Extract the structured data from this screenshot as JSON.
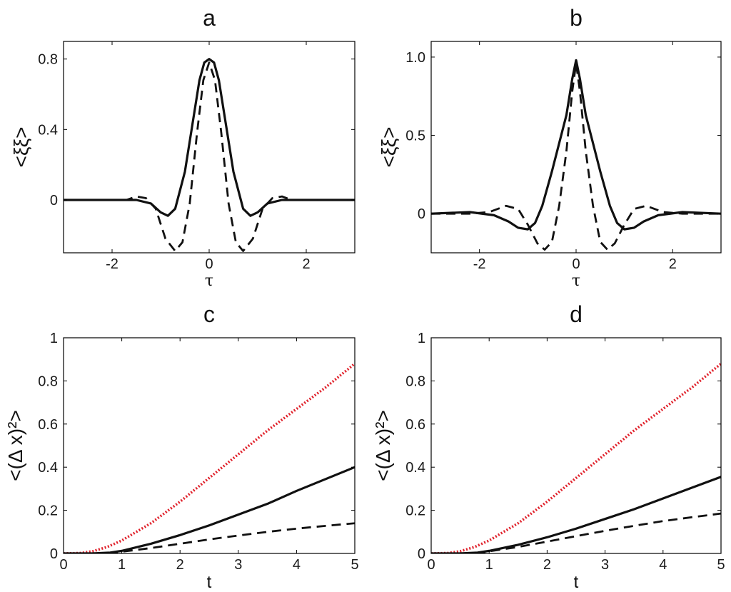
{
  "chart_data": [
    {
      "id": "a",
      "type": "line",
      "title": "a",
      "xlabel": "τ",
      "ylabel": "<ξξ>",
      "xlim": [
        -3,
        3
      ],
      "ylim": [
        -0.3,
        0.9
      ],
      "xticks": [
        -2,
        0,
        2
      ],
      "xtick_labels": [
        "-2",
        "0",
        "2"
      ],
      "yticks": [
        0,
        0.4,
        0.8
      ],
      "ytick_labels": [
        "0",
        "0.4",
        "0.8"
      ],
      "series": [
        {
          "name": "solid",
          "style": "solid",
          "color": "#111111",
          "x": [
            -3,
            -1.5,
            -1.2,
            -1.0,
            -0.85,
            -0.7,
            -0.5,
            -0.35,
            -0.2,
            -0.1,
            0,
            0.1,
            0.2,
            0.35,
            0.5,
            0.7,
            0.85,
            1.0,
            1.2,
            1.5,
            3
          ],
          "y": [
            0,
            0,
            -0.02,
            -0.07,
            -0.09,
            -0.05,
            0.16,
            0.42,
            0.68,
            0.78,
            0.8,
            0.78,
            0.68,
            0.42,
            0.16,
            -0.05,
            -0.09,
            -0.07,
            -0.02,
            0,
            0
          ]
        },
        {
          "name": "dashed",
          "style": "dashed",
          "color": "#111111",
          "x": [
            -3,
            -1.7,
            -1.5,
            -1.3,
            -1.1,
            -0.9,
            -0.7,
            -0.55,
            -0.4,
            -0.25,
            -0.12,
            0,
            0.12,
            0.25,
            0.4,
            0.55,
            0.7,
            0.9,
            1.1,
            1.3,
            1.5,
            1.7,
            3
          ],
          "y": [
            0,
            0,
            0.02,
            0.01,
            -0.05,
            -0.22,
            -0.29,
            -0.24,
            -0.02,
            0.38,
            0.68,
            0.78,
            0.68,
            0.38,
            -0.02,
            -0.24,
            -0.29,
            -0.22,
            -0.05,
            0.01,
            0.02,
            0,
            0
          ]
        }
      ]
    },
    {
      "id": "b",
      "type": "line",
      "title": "b",
      "xlabel": "τ",
      "ylabel": "<ξξ>",
      "xlim": [
        -3,
        3
      ],
      "ylim": [
        -0.25,
        1.1
      ],
      "xticks": [
        -2,
        0,
        2
      ],
      "xtick_labels": [
        "-2",
        "0",
        "2"
      ],
      "yticks": [
        0,
        0.5,
        1.0
      ],
      "ytick_labels": [
        "0",
        "0.5",
        "1.0"
      ],
      "series": [
        {
          "name": "solid",
          "style": "solid",
          "color": "#111111",
          "x": [
            -3,
            -2.2,
            -1.7,
            -1.4,
            -1.2,
            -1.0,
            -0.85,
            -0.7,
            -0.5,
            -0.35,
            -0.2,
            -0.08,
            0,
            0.08,
            0.2,
            0.35,
            0.5,
            0.7,
            0.85,
            1.0,
            1.2,
            1.4,
            1.7,
            2.2,
            3
          ],
          "y": [
            0,
            0.01,
            -0.01,
            -0.05,
            -0.09,
            -0.1,
            -0.06,
            0.05,
            0.27,
            0.45,
            0.63,
            0.86,
            0.98,
            0.86,
            0.63,
            0.45,
            0.27,
            0.05,
            -0.06,
            -0.1,
            -0.09,
            -0.05,
            -0.01,
            0.01,
            0
          ]
        },
        {
          "name": "dashed",
          "style": "dashed",
          "color": "#111111",
          "x": [
            -3,
            -2.2,
            -1.8,
            -1.45,
            -1.2,
            -1.0,
            -0.8,
            -0.65,
            -0.5,
            -0.35,
            -0.2,
            -0.08,
            0,
            0.08,
            0.2,
            0.35,
            0.5,
            0.65,
            0.8,
            1.0,
            1.2,
            1.45,
            1.8,
            2.2,
            3
          ],
          "y": [
            0,
            0,
            0.01,
            0.05,
            0.03,
            -0.07,
            -0.19,
            -0.23,
            -0.18,
            0.05,
            0.4,
            0.78,
            0.96,
            0.78,
            0.4,
            0.05,
            -0.18,
            -0.23,
            -0.19,
            -0.07,
            0.03,
            0.05,
            0.01,
            0,
            0
          ]
        }
      ]
    },
    {
      "id": "c",
      "type": "line",
      "title": "c",
      "xlabel": "t",
      "ylabel": "<(Δ x)²>",
      "xlim": [
        0,
        5
      ],
      "ylim": [
        0,
        1
      ],
      "xticks": [
        0,
        1,
        2,
        3,
        4,
        5
      ],
      "xtick_labels": [
        "0",
        "1",
        "2",
        "3",
        "4",
        "5"
      ],
      "yticks": [
        0,
        0.2,
        0.4,
        0.6,
        0.8,
        1
      ],
      "ytick_labels": [
        "0",
        "0.2",
        "0.4",
        "0.6",
        "0.8",
        "1"
      ],
      "series": [
        {
          "name": "red-dotted",
          "style": "dotted",
          "color": "#e0202a",
          "x": [
            0,
            0.3,
            0.5,
            0.75,
            1,
            1.5,
            2,
            2.5,
            3,
            3.5,
            4,
            4.5,
            5
          ],
          "y": [
            0,
            0.002,
            0.01,
            0.03,
            0.06,
            0.14,
            0.24,
            0.35,
            0.46,
            0.57,
            0.67,
            0.77,
            0.88
          ]
        },
        {
          "name": "solid",
          "style": "solid",
          "color": "#111111",
          "x": [
            0,
            0.5,
            0.8,
            1,
            1.5,
            2,
            2.5,
            3,
            3.5,
            4,
            4.5,
            5
          ],
          "y": [
            0,
            0,
            0.004,
            0.012,
            0.045,
            0.085,
            0.13,
            0.18,
            0.23,
            0.29,
            0.345,
            0.4
          ]
        },
        {
          "name": "dashed",
          "style": "dashed",
          "color": "#111111",
          "x": [
            0,
            0.6,
            0.9,
            1,
            1.5,
            2,
            2.5,
            3,
            3.5,
            4,
            4.5,
            5
          ],
          "y": [
            0,
            0,
            0.004,
            0.008,
            0.025,
            0.045,
            0.065,
            0.083,
            0.1,
            0.115,
            0.128,
            0.14
          ]
        }
      ]
    },
    {
      "id": "d",
      "type": "line",
      "title": "d",
      "xlabel": "t",
      "ylabel": "<(Δ x)²>",
      "xlim": [
        0,
        5
      ],
      "ylim": [
        0,
        1
      ],
      "xticks": [
        0,
        1,
        2,
        3,
        4,
        5
      ],
      "xtick_labels": [
        "0",
        "1",
        "2",
        "3",
        "4",
        "5"
      ],
      "yticks": [
        0,
        0.2,
        0.4,
        0.6,
        0.8,
        1
      ],
      "ytick_labels": [
        "0",
        "0.2",
        "0.4",
        "0.6",
        "0.8",
        "1"
      ],
      "series": [
        {
          "name": "red-dotted",
          "style": "dotted",
          "color": "#e0202a",
          "x": [
            0,
            0.3,
            0.5,
            0.75,
            1,
            1.5,
            2,
            2.5,
            3,
            3.5,
            4,
            4.5,
            5
          ],
          "y": [
            0,
            0.002,
            0.01,
            0.03,
            0.06,
            0.14,
            0.24,
            0.35,
            0.46,
            0.57,
            0.67,
            0.77,
            0.88
          ]
        },
        {
          "name": "solid",
          "style": "solid",
          "color": "#111111",
          "x": [
            0,
            0.5,
            0.8,
            1,
            1.5,
            2,
            2.5,
            3,
            3.5,
            4,
            4.5,
            5
          ],
          "y": [
            0,
            0,
            0.004,
            0.012,
            0.04,
            0.075,
            0.115,
            0.16,
            0.205,
            0.255,
            0.305,
            0.355
          ]
        },
        {
          "name": "dashed",
          "style": "dashed",
          "color": "#111111",
          "x": [
            0,
            0.6,
            0.9,
            1,
            1.5,
            2,
            2.5,
            3,
            3.5,
            4,
            4.5,
            5
          ],
          "y": [
            0,
            0,
            0.005,
            0.01,
            0.03,
            0.055,
            0.08,
            0.105,
            0.128,
            0.15,
            0.168,
            0.185
          ]
        }
      ]
    }
  ]
}
